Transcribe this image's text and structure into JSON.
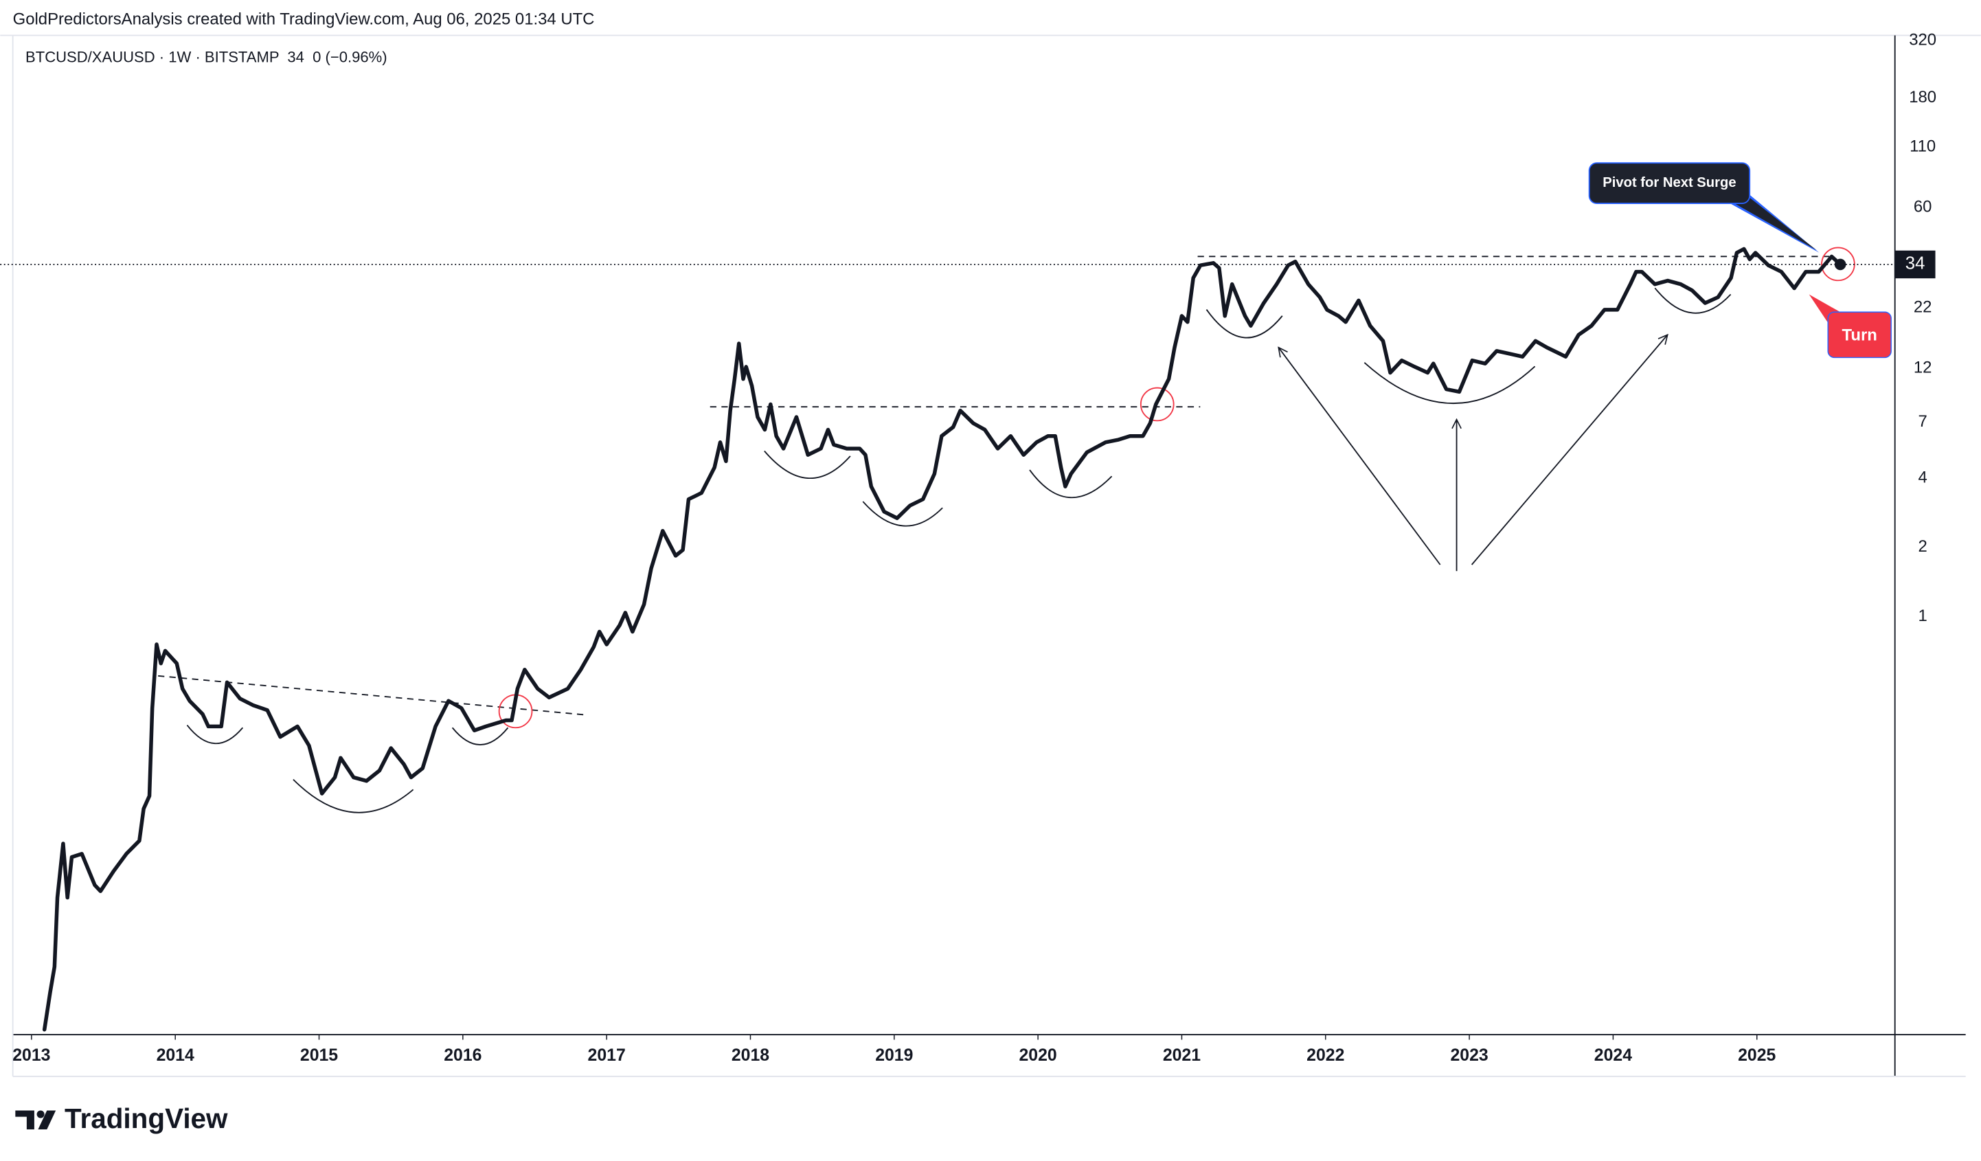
{
  "credit": "GoldPredictorsAnalysis created with TradingView.com, Aug 06, 2025 01:34 UTC",
  "watermark": "TradingView",
  "chart_data": {
    "type": "line",
    "subtitle": "BTCUSD/XAUUSD · 1W · BITSTAMP  34  0 (−0.96%)",
    "annotations": [
      "Pivot for Next Surge",
      "Turn"
    ],
    "log_scale": true,
    "grid": false,
    "xlim": [
      2012.87,
      2025.96
    ],
    "xticks": [
      2013,
      2014,
      2015,
      2016,
      2017,
      2018,
      2019,
      2020,
      2021,
      2022,
      2023,
      2024,
      2025
    ],
    "ylim": [
      0.0154,
      337
    ],
    "yticks": [
      1,
      2,
      4,
      7,
      12,
      22,
      60,
      110,
      180,
      320
    ],
    "x": [
      2013.09,
      2013.13,
      2013.16,
      2013.18,
      2013.22,
      2013.25,
      2013.28,
      2013.35,
      2013.44,
      2013.48,
      2013.57,
      2013.66,
      2013.75,
      2013.78,
      2013.82,
      2013.84,
      2013.87,
      2013.9,
      2013.93,
      2014.01,
      2014.05,
      2014.1,
      2014.19,
      2014.23,
      2014.32,
      2014.36,
      2014.45,
      2014.54,
      2014.64,
      2014.73,
      2014.85,
      2014.93,
      2015.02,
      2015.11,
      2015.15,
      2015.24,
      2015.33,
      2015.42,
      2015.5,
      2015.59,
      2015.64,
      2015.72,
      2015.81,
      2015.9,
      2015.99,
      2016.08,
      2016.16,
      2016.3,
      2016.34,
      2016.38,
      2016.43,
      2016.52,
      2016.6,
      2016.73,
      2016.82,
      2016.91,
      2016.95,
      2017.0,
      2017.09,
      2017.13,
      2017.18,
      2017.26,
      2017.31,
      2017.39,
      2017.48,
      2017.53,
      2017.57,
      2017.66,
      2017.75,
      2017.79,
      2017.83,
      2017.86,
      2017.89,
      2017.92,
      2017.95,
      2017.97,
      2018.01,
      2018.05,
      2018.1,
      2018.14,
      2018.18,
      2018.23,
      2018.32,
      2018.4,
      2018.49,
      2018.54,
      2018.58,
      2018.67,
      2018.76,
      2018.8,
      2018.84,
      2018.93,
      2019.02,
      2019.11,
      2019.2,
      2019.28,
      2019.33,
      2019.41,
      2019.46,
      2019.55,
      2019.63,
      2019.72,
      2019.81,
      2019.9,
      2019.99,
      2020.07,
      2020.12,
      2020.16,
      2020.19,
      2020.23,
      2020.34,
      2020.47,
      2020.56,
      2020.64,
      2020.73,
      2020.78,
      2020.82,
      2020.91,
      2020.95,
      2021.0,
      2021.04,
      2021.08,
      2021.13,
      2021.22,
      2021.26,
      2021.3,
      2021.35,
      2021.44,
      2021.48,
      2021.57,
      2021.66,
      2021.74,
      2021.79,
      2021.88,
      2021.96,
      2022.01,
      2022.09,
      2022.14,
      2022.23,
      2022.31,
      2022.4,
      2022.45,
      2022.53,
      2022.62,
      2022.71,
      2022.75,
      2022.84,
      2022.93,
      2023.02,
      2023.11,
      2023.19,
      2023.28,
      2023.37,
      2023.46,
      2023.54,
      2023.63,
      2023.67,
      2023.76,
      2023.85,
      2023.94,
      2024.03,
      2024.12,
      2024.16,
      2024.2,
      2024.29,
      2024.38,
      2024.47,
      2024.55,
      2024.64,
      2024.73,
      2024.82,
      2024.86,
      2024.91,
      2024.95,
      2024.99,
      2025.08,
      2025.17,
      2025.26,
      2025.34,
      2025.43,
      2025.52,
      2025.58
    ],
    "series": [
      {
        "name": "BTCUSD/XAUUSD",
        "color": "#131722",
        "values": [
          0.016,
          0.0233,
          0.03,
          0.06,
          0.103,
          0.06,
          0.09,
          0.093,
          0.068,
          0.064,
          0.078,
          0.093,
          0.106,
          0.146,
          0.166,
          0.4,
          0.757,
          0.626,
          0.71,
          0.626,
          0.486,
          0.43,
          0.377,
          0.333,
          0.333,
          0.518,
          0.44,
          0.412,
          0.392,
          0.3,
          0.333,
          0.275,
          0.17,
          0.2,
          0.243,
          0.2,
          0.193,
          0.214,
          0.268,
          0.228,
          0.2,
          0.219,
          0.333,
          0.43,
          0.4,
          0.32,
          0.333,
          0.354,
          0.354,
          0.486,
          0.588,
          0.486,
          0.445,
          0.486,
          0.588,
          0.738,
          0.86,
          0.757,
          0.916,
          1.04,
          0.86,
          1.13,
          1.62,
          2.36,
          1.84,
          1.95,
          3.24,
          3.45,
          4.45,
          5.73,
          4.74,
          7.87,
          10.8,
          15.4,
          10.8,
          12.2,
          10.1,
          7.38,
          6.5,
          8.38,
          6.1,
          5.38,
          7.38,
          5.05,
          5.38,
          6.5,
          5.59,
          5.38,
          5.38,
          5.05,
          3.68,
          2.86,
          2.68,
          3.04,
          3.24,
          4.18,
          6.1,
          6.67,
          7.87,
          6.93,
          6.5,
          5.38,
          6.1,
          5.05,
          5.73,
          6.1,
          6.1,
          4.45,
          3.68,
          4.18,
          5.18,
          5.73,
          5.88,
          6.1,
          6.1,
          6.93,
          8.38,
          10.8,
          14.8,
          20.3,
          19.1,
          29.7,
          33.7,
          34.5,
          32.8,
          20.3,
          27.9,
          20.3,
          18.4,
          23.1,
          27.9,
          33.7,
          35,
          27.9,
          24.5,
          21.6,
          20.3,
          19.1,
          23.7,
          18.4,
          15.8,
          11.5,
          13,
          12.2,
          11.5,
          12.6,
          9.75,
          9.5,
          13,
          12.6,
          14.3,
          13.9,
          13.5,
          15.8,
          14.8,
          13.9,
          13.5,
          16.8,
          18.4,
          21.6,
          21.6,
          27.9,
          31.6,
          31.6,
          27.9,
          28.9,
          27.9,
          26.2,
          23.1,
          24.5,
          29.7,
          38.2,
          39.7,
          35.8,
          38.2,
          33.7,
          31.6,
          26.8,
          31.6,
          31.6,
          36.8,
          34
        ]
      }
    ]
  }
}
